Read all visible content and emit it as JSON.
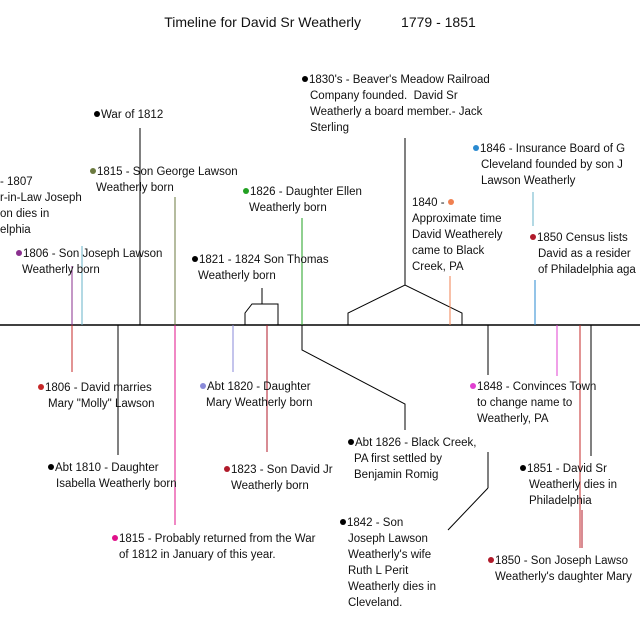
{
  "title": {
    "name": "Timeline for David Sr Weatherly",
    "years": "1779 - 1851"
  },
  "colors": {
    "axis": "#000000",
    "black": "#000000",
    "olive": "#6b7a3f",
    "green": "#22a022",
    "purple": "#8a2f8e",
    "blue": "#2a8ad0",
    "teal": "#67b3c8",
    "red": "#c62828",
    "crimson": "#b01a2a",
    "orange": "#f08050",
    "lavender": "#8a8ad8",
    "pink": "#e040d0",
    "magenta": "#e0108a"
  },
  "events_above": [
    {
      "id": "railroad",
      "dot": "black",
      "lines": [
        "1830's - Beaver's Meadow Railroad",
        "Company founded.  David Sr",
        "Weatherly a board member.- Jack",
        "Sterling"
      ]
    },
    {
      "id": "war1812",
      "dot": "black",
      "lines": [
        "War of 1812"
      ]
    },
    {
      "id": "insurance",
      "dot": "blue",
      "lines": [
        "1846 - Insurance Board of G",
        "Cleveland founded by son J",
        "Lawson Weatherly"
      ]
    },
    {
      "id": "inlaw",
      "dot": "black",
      "lines": [
        "- 1807",
        "r-in-Law Joseph",
        "on dies in",
        "elphia"
      ]
    },
    {
      "id": "son_george",
      "dot": "olive",
      "lines": [
        "1815 - Son George Lawson",
        "Weatherly born"
      ]
    },
    {
      "id": "dau_ellen",
      "dot": "green",
      "lines": [
        "1826 - Daughter Ellen",
        "Weatherly born"
      ]
    },
    {
      "id": "came1840",
      "dot": "orange",
      "lines": [
        "1840 -",
        "Approximate time",
        "David Weatherely",
        "came to Black",
        "Creek, PA"
      ]
    },
    {
      "id": "census1850",
      "dot": "crimson",
      "lines": [
        "1850 Census lists",
        "David as a resider",
        "of Philadelphia aga"
      ]
    },
    {
      "id": "son_joseph",
      "dot": "purple",
      "lines": [
        "1806 - Son Joseph Lawson",
        "Weatherly born"
      ]
    },
    {
      "id": "son_thomas",
      "dot": "black",
      "lines": [
        "1821 - 1824 Son Thomas",
        "Weatherly born"
      ]
    }
  ],
  "events_below": [
    {
      "id": "married",
      "dot": "red",
      "lines": [
        "1806 - David marries",
        "Mary \"Molly\" Lawson"
      ]
    },
    {
      "id": "dau_mary",
      "dot": "lavender",
      "lines": [
        "Abt 1820 - Daughter",
        "Mary Weatherly born"
      ]
    },
    {
      "id": "town",
      "dot": "pink",
      "lines": [
        "1848 - Convinces Town",
        "to change name to",
        "Weatherly, PA"
      ]
    },
    {
      "id": "black_creek",
      "dot": "black",
      "lines": [
        "Abt 1826 - Black Creek,",
        "PA first settled by",
        "Benjamin Romig"
      ]
    },
    {
      "id": "dau_isabella",
      "dot": "black",
      "lines": [
        "Abt 1810 - Daughter",
        "Isabella Weatherly born"
      ]
    },
    {
      "id": "son_david_jr",
      "dot": "crimson",
      "lines": [
        "1823 - Son David Jr",
        "Weatherly born"
      ]
    },
    {
      "id": "death1851",
      "dot": "black",
      "lines": [
        "1851 - David Sr",
        "Weatherly dies in",
        "Philadelphia"
      ]
    },
    {
      "id": "returned",
      "dot": "magenta",
      "lines": [
        "1815 - Probably returned from the War",
        "of 1812 in January of this year."
      ]
    },
    {
      "id": "wife_dies",
      "dot": "black",
      "lines": [
        "1842 - Son",
        "Joseph Lawson",
        "Weatherly's wife",
        "Ruth L Perit",
        "Weatherly dies in",
        "Cleveland."
      ]
    },
    {
      "id": "granddaughter",
      "dot": "crimson",
      "lines": [
        "1850 - Son Joseph Lawso",
        "Weatherly's daughter Mary"
      ]
    }
  ]
}
